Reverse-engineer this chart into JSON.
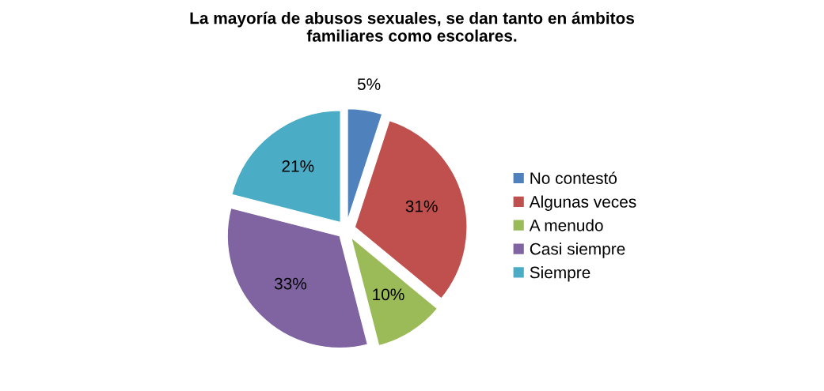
{
  "chart_data": {
    "type": "pie",
    "title": "La mayoría de abusos sexuales, se dan tanto en ámbitos\nfamiliares como escolares.",
    "categories": [
      "No contestó",
      "Algunas veces",
      "A menudo",
      "Casi siempre",
      "Siempre"
    ],
    "values": [
      5,
      31,
      10,
      33,
      21
    ],
    "colors": [
      "#4f81bd",
      "#c0504d",
      "#9bbb59",
      "#8064a2",
      "#4bacc6"
    ],
    "value_labels": [
      "5%",
      "31%",
      "10%",
      "33%",
      "21%"
    ],
    "legend": "right"
  }
}
